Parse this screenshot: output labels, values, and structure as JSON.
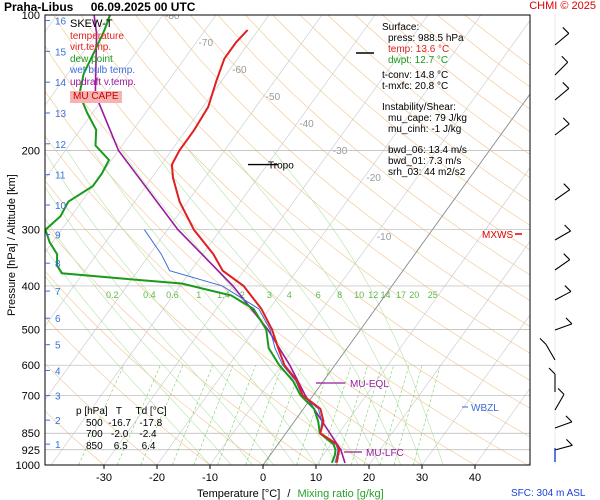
{
  "header": {
    "station": "Praha-Libus",
    "datetime": "06.09.2025 00 UTC",
    "credit": "CHMI © 2025"
  },
  "legend": {
    "title": "SKEW-T",
    "items": [
      {
        "label": "temperature",
        "color": "#e02020"
      },
      {
        "label": "virt.temp.",
        "color": "#e02020"
      },
      {
        "label": "dew point",
        "color": "#1a9a1a"
      },
      {
        "label": "wet bulb temp.",
        "color": "#3a6fd8"
      },
      {
        "label": "updraft v.temp.",
        "color": "#9a1aa0"
      }
    ],
    "mucape_badge": "MU CAPE"
  },
  "surface": {
    "heading": "Surface:",
    "press": "press: 988.5 hPa",
    "temp": "temp: 13.6 °C",
    "dwpt": "dwpt: 12.7 °C",
    "tconv": "t-conv: 14.8 °C",
    "tmxfc": "t-mxfc: 20.8 °C"
  },
  "instability": {
    "heading": "Instability/Shear:",
    "mu_cape": "mu_cape: 79 J/kg",
    "mu_cinh": "mu_cinh: -1 J/kg",
    "bwd_06": "bwd_06: 13.4 m/s",
    "bwd_01": "bwd_01: 7.3 m/s",
    "srh_03": "srh_03: 44 m2/s2"
  },
  "ptable": {
    "header": "p [hPa]   T     Td [°C]",
    "rows": [
      "500  -16.7   -17.8",
      "700   -2.0    -2.4",
      "850    6.5     6.4"
    ]
  },
  "annotations": {
    "tropo": "Tropo",
    "mxws": "MXWS",
    "wbzl": "WBZL",
    "mu_eql": "MU-EQL",
    "mu_lfc": "MU-LFC",
    "sfc": "SFC: 304 m ASL"
  },
  "axes": {
    "xlabel_temp": "Temperature [°C]",
    "xlabel_sep": "/",
    "xlabel_mix": "Mixing ratio [g/kg]",
    "ylabel": "Pressure [hPa]  /  Altitude [km]"
  },
  "chart_data": {
    "type": "line",
    "title": "SKEW-T",
    "x_axis": {
      "label": "Temperature [°C]",
      "ticks": [
        -30,
        -20,
        -10,
        0,
        10,
        20,
        30,
        40
      ],
      "range": [
        -35,
        45
      ]
    },
    "y_axis": {
      "label": "Pressure [hPa]",
      "scale": "log",
      "ticks": [
        100,
        200,
        300,
        400,
        500,
        600,
        700,
        850,
        925,
        1000
      ],
      "range": [
        1000,
        100
      ]
    },
    "altitude_ticks_km": [
      1,
      2,
      3,
      4,
      5,
      6,
      7,
      8,
      9,
      10,
      11,
      12,
      13,
      14,
      15,
      16
    ],
    "isotherm_labels": [
      -80,
      -70,
      -60,
      -50,
      -40,
      -30,
      -20,
      -10
    ],
    "mixing_ratio_labels": [
      "0.2",
      "0.4",
      "0.6",
      "1",
      "1.4",
      "2",
      "3",
      "4",
      "6",
      "8",
      "10",
      "12",
      "14",
      "17",
      "20",
      "25"
    ],
    "series": [
      {
        "name": "temperature",
        "color": "#e02020",
        "points": [
          [
            988.5,
            13.6
          ],
          [
            950,
            12.8
          ],
          [
            925,
            12.3
          ],
          [
            900,
            11.2
          ],
          [
            850,
            6.5
          ],
          [
            800,
            5.5
          ],
          [
            750,
            3.2
          ],
          [
            700,
            -2.0
          ],
          [
            650,
            -5.0
          ],
          [
            600,
            -9.5
          ],
          [
            550,
            -13.0
          ],
          [
            500,
            -16.7
          ],
          [
            450,
            -21.5
          ],
          [
            400,
            -28.0
          ],
          [
            370,
            -34.0
          ],
          [
            340,
            -38.0
          ],
          [
            300,
            -45.0
          ],
          [
            260,
            -51.5
          ],
          [
            230,
            -56.0
          ],
          [
            215,
            -58.0
          ],
          [
            200,
            -58.5
          ],
          [
            180,
            -58.5
          ],
          [
            160,
            -59.0
          ],
          [
            140,
            -61.0
          ],
          [
            125,
            -62.5
          ],
          [
            115,
            -62.5
          ],
          [
            108,
            -62.0
          ]
        ]
      },
      {
        "name": "dew point",
        "color": "#1a9a1a",
        "points": [
          [
            988.5,
            12.7
          ],
          [
            950,
            12.2
          ],
          [
            925,
            11.6
          ],
          [
            900,
            10.5
          ],
          [
            850,
            6.4
          ],
          [
            800,
            4.5
          ],
          [
            750,
            2.0
          ],
          [
            700,
            -2.4
          ],
          [
            650,
            -5.8
          ],
          [
            600,
            -10.5
          ],
          [
            550,
            -14.8
          ],
          [
            500,
            -17.8
          ],
          [
            450,
            -23.0
          ],
          [
            420,
            -29.0
          ],
          [
            395,
            -40.0
          ],
          [
            385,
            -52.0
          ],
          [
            375,
            -64.0
          ],
          [
            360,
            -66.0
          ],
          [
            340,
            -67.5
          ],
          [
            320,
            -70.5
          ],
          [
            300,
            -73.0
          ],
          [
            280,
            -72.0
          ],
          [
            260,
            -72.5
          ],
          [
            240,
            -70.0
          ],
          [
            225,
            -70.0
          ],
          [
            210,
            -70.5
          ],
          [
            195,
            -75.0
          ],
          [
            180,
            -77.0
          ],
          [
            165,
            -81.0
          ],
          [
            150,
            -85.0
          ],
          [
            135,
            -87.0
          ],
          [
            120,
            -88.0
          ],
          [
            108,
            -89.0
          ],
          [
            100,
            -90.0
          ]
        ]
      },
      {
        "name": "updraft v.temp.",
        "color": "#9a1aa0",
        "points": [
          [
            990,
            15.2
          ],
          [
            925,
            12.6
          ],
          [
            850,
            8.3
          ],
          [
            700,
            -1.5
          ],
          [
            600,
            -8.5
          ],
          [
            500,
            -17.5
          ],
          [
            400,
            -30.0
          ],
          [
            300,
            -48.0
          ],
          [
            200,
            -70.0
          ],
          [
            150,
            -82.0
          ],
          [
            110,
            -90.0
          ],
          [
            100,
            -93.0
          ]
        ]
      }
    ]
  }
}
